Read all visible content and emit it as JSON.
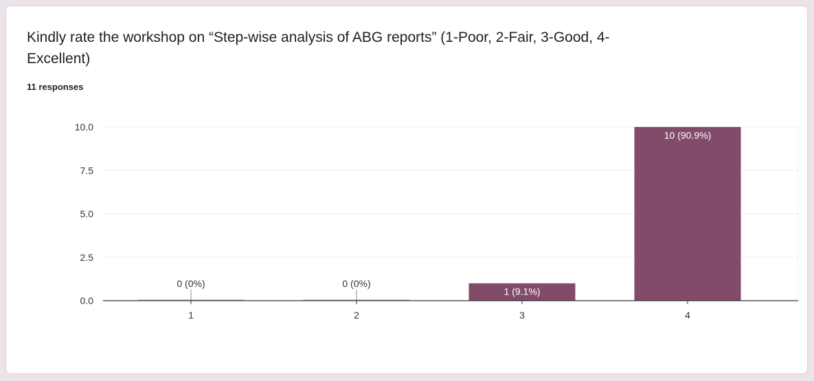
{
  "card": {
    "title": "Kindly rate the workshop on “Step-wise analysis of ABG reports” (1-Poor, 2-Fair, 3-Good, 4-Excellent)",
    "responses": "11 responses"
  },
  "colors": {
    "bar": "#824b6a",
    "grid": "#eeeeee",
    "axis": "#333333",
    "label_inside": "#ffffff",
    "label_outside": "#333333",
    "background": "#ffffff",
    "page": "#ece4ea"
  },
  "chart_data": {
    "type": "bar",
    "categories": [
      "1",
      "2",
      "3",
      "4"
    ],
    "values": [
      0,
      0,
      1,
      10
    ],
    "data_labels": [
      "0 (0%)",
      "0 (0%)",
      "1 (9.1%)",
      "10 (90.9%)"
    ],
    "ylim": [
      0,
      10
    ],
    "yticks": [
      "0.0",
      "2.5",
      "5.0",
      "7.5",
      "10.0"
    ],
    "ytick_values": [
      0,
      2.5,
      5,
      7.5,
      10
    ],
    "grid": true,
    "legend": "none",
    "title": "",
    "xlabel": "",
    "ylabel": ""
  }
}
